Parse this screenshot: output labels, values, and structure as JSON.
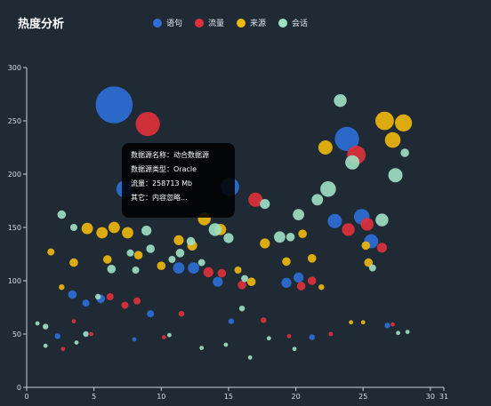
{
  "title": "热度分析",
  "legend": [
    {
      "label": "语句",
      "color": "#2c6fd8"
    },
    {
      "label": "流量",
      "color": "#e0313a"
    },
    {
      "label": "来源",
      "color": "#f0b90b"
    },
    {
      "label": "会话",
      "color": "#9fe1c4"
    }
  ],
  "tooltip": {
    "line1": "数据源名称：动合数据源",
    "line2": "数据源类型：Oracle",
    "line3": "流量：258713 Mb",
    "line4": "其它：内容忽略..."
  },
  "chart_data": {
    "type": "scatter",
    "title": "热度分析",
    "xlabel": "",
    "ylabel": "",
    "xlim": [
      0,
      31
    ],
    "ylim": [
      0,
      300
    ],
    "x_ticks": [
      0,
      5,
      10,
      15,
      20,
      25,
      30,
      31
    ],
    "y_ticks": [
      0,
      50,
      100,
      150,
      200,
      250,
      300
    ],
    "grid": false,
    "legend_position": "top",
    "series": [
      {
        "name": "语句",
        "color": "#2c6fd8",
        "points": [
          [
            6.5,
            265,
            2.6
          ],
          [
            7.3,
            186,
            1.2
          ],
          [
            15.1,
            188,
            1.3
          ],
          [
            23.8,
            233,
            1.7
          ],
          [
            24.9,
            160,
            1.1
          ],
          [
            22.9,
            156,
            1.0
          ],
          [
            25.6,
            137,
            1.0
          ],
          [
            11.3,
            112,
            0.8
          ],
          [
            12.4,
            112,
            0.8
          ],
          [
            14.2,
            99,
            0.7
          ],
          [
            19.3,
            98,
            0.7
          ],
          [
            20.2,
            103,
            0.7
          ],
          [
            3.4,
            87,
            0.6
          ],
          [
            4.4,
            79,
            0.5
          ],
          [
            5.5,
            83,
            0.6
          ],
          [
            9.2,
            69,
            0.5
          ],
          [
            15.2,
            62,
            0.4
          ],
          [
            21.2,
            47,
            0.4
          ],
          [
            26.8,
            58,
            0.4
          ],
          [
            2.3,
            48,
            0.4
          ],
          [
            8.0,
            45,
            0.3
          ]
        ]
      },
      {
        "name": "流量",
        "color": "#e0313a",
        "points": [
          [
            9.0,
            247,
            1.7
          ],
          [
            24.5,
            218,
            1.3
          ],
          [
            17.0,
            176,
            1.0
          ],
          [
            23.9,
            148,
            0.9
          ],
          [
            25.3,
            153,
            0.9
          ],
          [
            26.4,
            131,
            0.7
          ],
          [
            13.5,
            108,
            0.7
          ],
          [
            14.5,
            107,
            0.6
          ],
          [
            16.0,
            96,
            0.6
          ],
          [
            20.4,
            95,
            0.6
          ],
          [
            21.2,
            100,
            0.6
          ],
          [
            6.2,
            85,
            0.5
          ],
          [
            7.3,
            77,
            0.5
          ],
          [
            8.2,
            81,
            0.5
          ],
          [
            11.5,
            69,
            0.4
          ],
          [
            17.6,
            63,
            0.4
          ],
          [
            22.6,
            50,
            0.3
          ],
          [
            27.2,
            59,
            0.3
          ],
          [
            3.5,
            62,
            0.3
          ],
          [
            4.8,
            50,
            0.3
          ],
          [
            2.7,
            36,
            0.3
          ],
          [
            10.2,
            47,
            0.3
          ],
          [
            19.5,
            48,
            0.3
          ]
        ]
      },
      {
        "name": "来源",
        "color": "#f0b90b",
        "points": [
          [
            26.6,
            250,
            1.3
          ],
          [
            28.0,
            248,
            1.2
          ],
          [
            27.2,
            232,
            1.1
          ],
          [
            22.2,
            225,
            1.0
          ],
          [
            13.2,
            158,
            0.9
          ],
          [
            4.5,
            149,
            0.8
          ],
          [
            5.6,
            145,
            0.8
          ],
          [
            6.5,
            150,
            0.8
          ],
          [
            7.5,
            145,
            0.8
          ],
          [
            11.3,
            138,
            0.7
          ],
          [
            12.3,
            133,
            0.7
          ],
          [
            14.4,
            148,
            0.8
          ],
          [
            17.7,
            135,
            0.7
          ],
          [
            19.3,
            118,
            0.6
          ],
          [
            20.5,
            144,
            0.6
          ],
          [
            21.2,
            121,
            0.6
          ],
          [
            25.2,
            133,
            0.6
          ],
          [
            25.4,
            117,
            0.6
          ],
          [
            6.0,
            120,
            0.6
          ],
          [
            8.3,
            124,
            0.6
          ],
          [
            10.0,
            114,
            0.6
          ],
          [
            3.5,
            117,
            0.6
          ],
          [
            1.8,
            127,
            0.5
          ],
          [
            15.7,
            110,
            0.5
          ],
          [
            16.7,
            99,
            0.6
          ],
          [
            2.6,
            94,
            0.4
          ],
          [
            21.9,
            94,
            0.4
          ],
          [
            24.1,
            61,
            0.3
          ],
          [
            25.0,
            61,
            0.3
          ]
        ]
      },
      {
        "name": "会话",
        "color": "#9fe1c4",
        "points": [
          [
            23.3,
            269,
            0.9
          ],
          [
            24.2,
            211,
            1.0
          ],
          [
            27.4,
            199,
            1.0
          ],
          [
            22.4,
            186,
            1.1
          ],
          [
            28.1,
            220,
            0.6
          ],
          [
            26.4,
            157,
            0.9
          ],
          [
            21.6,
            176,
            0.8
          ],
          [
            20.2,
            162,
            0.8
          ],
          [
            17.7,
            172,
            0.7
          ],
          [
            18.8,
            141,
            0.8
          ],
          [
            19.6,
            141,
            0.6
          ],
          [
            14.0,
            148,
            0.9
          ],
          [
            15.0,
            140,
            0.7
          ],
          [
            11.4,
            126,
            0.6
          ],
          [
            12.2,
            137,
            0.6
          ],
          [
            8.9,
            147,
            0.7
          ],
          [
            2.6,
            162,
            0.6
          ],
          [
            3.5,
            150,
            0.5
          ],
          [
            6.3,
            111,
            0.6
          ],
          [
            9.2,
            130,
            0.6
          ],
          [
            10.8,
            120,
            0.5
          ],
          [
            13.0,
            117,
            0.5
          ],
          [
            16.2,
            102,
            0.5
          ],
          [
            8.1,
            110,
            0.5
          ],
          [
            25.7,
            112,
            0.5
          ],
          [
            7.7,
            126,
            0.5
          ],
          [
            1.4,
            57,
            0.4
          ],
          [
            4.4,
            50,
            0.4
          ],
          [
            0.8,
            60,
            0.3
          ],
          [
            1.4,
            39,
            0.3
          ],
          [
            3.7,
            42,
            0.3
          ],
          [
            10.6,
            49,
            0.3
          ],
          [
            13.0,
            37,
            0.3
          ],
          [
            16.6,
            28,
            0.3
          ],
          [
            18.0,
            46,
            0.3
          ],
          [
            19.9,
            36,
            0.3
          ],
          [
            27.6,
            51,
            0.3
          ],
          [
            28.3,
            52,
            0.3
          ],
          [
            5.3,
            85,
            0.4
          ],
          [
            16.0,
            74,
            0.4
          ],
          [
            14.8,
            40,
            0.3
          ]
        ]
      }
    ]
  }
}
